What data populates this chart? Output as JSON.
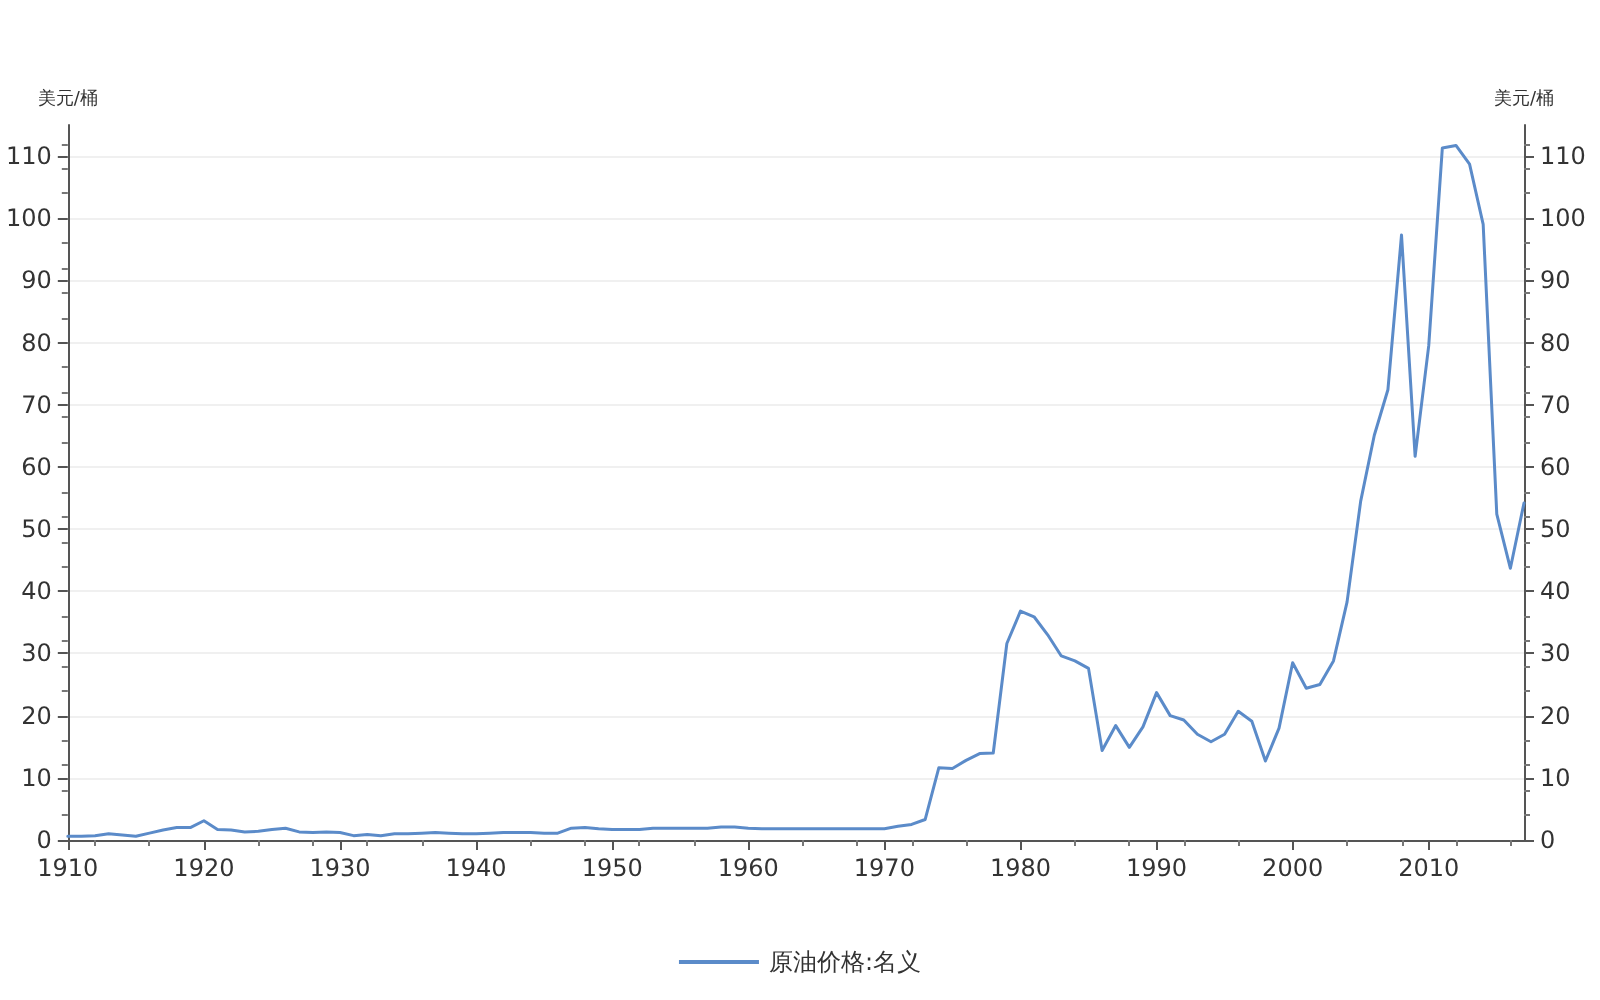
{
  "chart_data": {
    "type": "line",
    "ylabel": "美元/桶",
    "y2label": "美元/桶",
    "x": [
      1910,
      1911,
      1912,
      1913,
      1914,
      1915,
      1916,
      1917,
      1918,
      1919,
      1920,
      1921,
      1922,
      1923,
      1924,
      1925,
      1926,
      1927,
      1928,
      1929,
      1930,
      1931,
      1932,
      1933,
      1934,
      1935,
      1936,
      1937,
      1938,
      1939,
      1940,
      1941,
      1942,
      1943,
      1944,
      1945,
      1946,
      1947,
      1948,
      1949,
      1950,
      1951,
      1952,
      1953,
      1954,
      1955,
      1956,
      1957,
      1958,
      1959,
      1960,
      1961,
      1962,
      1963,
      1964,
      1965,
      1966,
      1967,
      1968,
      1969,
      1970,
      1971,
      1972,
      1973,
      1974,
      1975,
      1976,
      1977,
      1978,
      1979,
      1980,
      1981,
      1982,
      1983,
      1984,
      1985,
      1986,
      1987,
      1988,
      1989,
      1990,
      1991,
      1992,
      1993,
      1994,
      1995,
      1996,
      1997,
      1998,
      1999,
      2000,
      2001,
      2002,
      2003,
      2004,
      2005,
      2006,
      2007,
      2008,
      2009,
      2010,
      2011,
      2012,
      2013,
      2014,
      2015,
      2016,
      2017
    ],
    "series": [
      {
        "name": "原油价格:名义",
        "color": "#5b8bc9",
        "values": [
          0.6,
          0.6,
          0.7,
          1.0,
          0.8,
          0.6,
          1.1,
          1.6,
          2.0,
          2.0,
          3.1,
          1.7,
          1.6,
          1.3,
          1.4,
          1.7,
          1.9,
          1.3,
          1.2,
          1.3,
          1.2,
          0.7,
          0.9,
          0.7,
          1.0,
          1.0,
          1.1,
          1.2,
          1.1,
          1.0,
          1.0,
          1.1,
          1.2,
          1.2,
          1.2,
          1.1,
          1.1,
          1.9,
          2.0,
          1.8,
          1.7,
          1.7,
          1.7,
          1.9,
          1.9,
          1.9,
          1.9,
          1.9,
          2.1,
          2.1,
          1.9,
          1.8,
          1.8,
          1.8,
          1.8,
          1.8,
          1.8,
          1.8,
          1.8,
          1.8,
          1.8,
          2.2,
          2.5,
          3.3,
          11.6,
          11.5,
          12.8,
          13.9,
          14.0,
          31.6,
          36.8,
          35.9,
          33.0,
          29.6,
          28.8,
          27.6,
          14.4,
          18.4,
          14.9,
          18.2,
          23.7,
          20.0,
          19.3,
          17.0,
          15.8,
          17.0,
          20.7,
          19.1,
          12.7,
          18.0,
          28.5,
          24.4,
          25.0,
          28.8,
          38.3,
          54.5,
          65.1,
          72.4,
          97.3,
          61.7,
          79.5,
          111.3,
          111.7,
          108.7,
          99.0,
          52.4,
          43.7,
          54.2
        ]
      }
    ],
    "xlim": [
      1910,
      2017
    ],
    "xticks": [
      1910,
      1920,
      1930,
      1940,
      1950,
      1960,
      1970,
      1980,
      1990,
      2000,
      2010
    ],
    "ylim": [
      0,
      115
    ],
    "yticks": [
      0,
      10,
      20,
      30,
      40,
      50,
      60,
      70,
      80,
      90,
      100,
      110
    ],
    "y2lim": [
      0,
      115
    ],
    "y2ticks": [
      0,
      10,
      20,
      30,
      40,
      50,
      60,
      70,
      80,
      90,
      100,
      110
    ],
    "grid": "y",
    "legend": "bottom",
    "marker": "none",
    "line_style": "solid"
  }
}
